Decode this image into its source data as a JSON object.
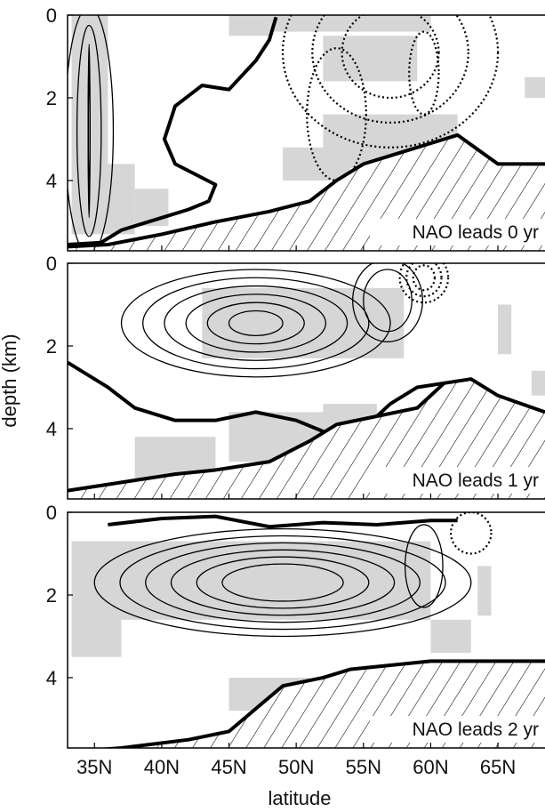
{
  "chart_data": {
    "type": "contour",
    "xlabel": "latitude",
    "ylabel": "depth (km)",
    "xlim": [
      33,
      68.5
    ],
    "ylim": [
      5.7,
      0
    ],
    "x_ticks": [
      {
        "value": 35,
        "label": "35N"
      },
      {
        "value": 40,
        "label": "40N"
      },
      {
        "value": 45,
        "label": "45N"
      },
      {
        "value": 50,
        "label": "50N"
      },
      {
        "value": 55,
        "label": "55N"
      },
      {
        "value": 60,
        "label": "60N"
      },
      {
        "value": 65,
        "label": "65N"
      }
    ],
    "y_ticks": [
      {
        "value": 0,
        "label": "0"
      },
      {
        "value": 2,
        "label": "2"
      },
      {
        "value": 4,
        "label": "4"
      }
    ],
    "shading": "grey = significant",
    "panels": [
      {
        "label": "NAO leads 0 yr",
        "bathymetry": [
          [
            33,
            5.6
          ],
          [
            36,
            5.55
          ],
          [
            40,
            5.3
          ],
          [
            44,
            5.0
          ],
          [
            48,
            4.75
          ],
          [
            51,
            4.5
          ],
          [
            53,
            4.0
          ],
          [
            55,
            3.6
          ],
          [
            57,
            3.4
          ],
          [
            60,
            3.1
          ],
          [
            62,
            2.9
          ],
          [
            65,
            3.6
          ],
          [
            68.5,
            3.6
          ]
        ],
        "positive_regions": [
          {
            "center": [
              34.6,
              2.8
            ],
            "radius": [
              1.8,
              3.0
            ],
            "levels": 5,
            "step": [
              0.9,
              0.45
            ]
          }
        ],
        "negative_regions": [
          {
            "center": [
              57,
              0.9
            ],
            "radius": [
              8,
              2.3
            ],
            "levels": 3,
            "step": [
              2.2,
              0.6
            ]
          },
          {
            "center": [
              53,
              2.4
            ],
            "radius": [
              2.2,
              1.6
            ],
            "levels": 1,
            "step": [
              0,
              0
            ]
          },
          {
            "center": [
              59.5,
              1.4
            ],
            "radius": [
              1.1,
              1.0
            ],
            "levels": 1,
            "step": [
              0,
              0
            ]
          }
        ],
        "zero_line": [
          [
            33,
            5.55
          ],
          [
            35.5,
            5.5
          ],
          [
            37,
            5.2
          ],
          [
            40,
            4.9
          ],
          [
            42,
            4.7
          ],
          [
            43.5,
            4.5
          ],
          [
            44,
            4.1
          ],
          [
            41,
            3.6
          ],
          [
            40.2,
            3.0
          ],
          [
            41,
            2.2
          ],
          [
            43,
            1.7
          ],
          [
            45,
            1.8
          ],
          [
            47,
            1.1
          ],
          [
            48,
            0.6
          ],
          [
            48.5,
            0.05
          ]
        ],
        "significance_boxes": [
          [
            [
              33.3,
              0.0
            ],
            [
              36.0,
              3.6
            ]
          ],
          [
            [
              33.3,
              3.6
            ],
            [
              38.0,
              5.3
            ]
          ],
          [
            [
              38.0,
              4.2
            ],
            [
              40.5,
              5.1
            ]
          ],
          [
            [
              45.0,
              0.0
            ],
            [
              48.0,
              0.5
            ]
          ],
          [
            [
              48.0,
              0.0
            ],
            [
              60.0,
              0.4
            ]
          ],
          [
            [
              52.0,
              0.5
            ],
            [
              59.0,
              1.6
            ]
          ],
          [
            [
              52.0,
              2.4
            ],
            [
              62.0,
              3.7
            ]
          ],
          [
            [
              49.0,
              3.2
            ],
            [
              54.0,
              4.0
            ]
          ],
          [
            [
              67.0,
              1.5
            ],
            [
              68.5,
              2.0
            ]
          ]
        ]
      },
      {
        "label": "NAO leads 1 yr",
        "bathymetry": [
          [
            33,
            5.5
          ],
          [
            37,
            5.3
          ],
          [
            41,
            5.1
          ],
          [
            44,
            5.0
          ],
          [
            48,
            4.8
          ],
          [
            51,
            4.3
          ],
          [
            53,
            3.9
          ],
          [
            56,
            3.7
          ],
          [
            59,
            3.5
          ],
          [
            61,
            2.9
          ],
          [
            63,
            2.8
          ],
          [
            65,
            3.2
          ],
          [
            68.5,
            3.6
          ]
        ],
        "positive_regions": [
          {
            "center": [
              47,
              1.45
            ],
            "radius": [
              10,
              1.3
            ],
            "levels": 6,
            "step": [
              1.6,
              0.2
            ]
          },
          {
            "center": [
              56.8,
              0.9
            ],
            "radius": [
              2.6,
              1.0
            ],
            "levels": 2,
            "step": [
              0.8,
              0.25
            ]
          }
        ],
        "negative_regions": [
          {
            "center": [
              59.5,
              0.35
            ],
            "radius": [
              1.8,
              0.6
            ],
            "levels": 3,
            "step": [
              0.5,
              0.15
            ]
          }
        ],
        "zero_line": [
          [
            33,
            2.4
          ],
          [
            36,
            3.0
          ],
          [
            38,
            3.5
          ],
          [
            41,
            3.8
          ],
          [
            44,
            3.8
          ],
          [
            47,
            3.6
          ],
          [
            50,
            3.8
          ],
          [
            53,
            4.2
          ],
          [
            55,
            4.0
          ],
          [
            57,
            3.4
          ],
          [
            59,
            3.0
          ],
          [
            61,
            2.9
          ]
        ],
        "significance_boxes": [
          [
            [
              43.0,
              0.6
            ],
            [
              58.0,
              2.3
            ]
          ],
          [
            [
              38.0,
              4.2
            ],
            [
              44.0,
              5.2
            ]
          ],
          [
            [
              45.0,
              3.6
            ],
            [
              52.0,
              4.8
            ]
          ],
          [
            [
              52.0,
              3.4
            ],
            [
              56.0,
              4.2
            ]
          ],
          [
            [
              65.0,
              1.0
            ],
            [
              66.0,
              2.2
            ]
          ],
          [
            [
              67.5,
              2.6
            ],
            [
              68.5,
              3.2
            ]
          ]
        ]
      },
      {
        "label": "NAO leads 2 yr",
        "bathymetry": [
          [
            33,
            5.8
          ],
          [
            37,
            5.7
          ],
          [
            42,
            5.5
          ],
          [
            45,
            5.3
          ],
          [
            49,
            4.2
          ],
          [
            52,
            4.0
          ],
          [
            54,
            3.8
          ],
          [
            57,
            3.7
          ],
          [
            60,
            3.6
          ],
          [
            63,
            3.6
          ],
          [
            66,
            3.6
          ],
          [
            68.5,
            3.6
          ]
        ],
        "positive_regions": [
          {
            "center": [
              49,
              1.7
            ],
            "radius": [
              14,
              1.3
            ],
            "levels": 6,
            "step": [
              1.9,
              0.17
            ]
          },
          {
            "center": [
              59.5,
              1.3
            ],
            "radius": [
              1.4,
              1.0
            ],
            "levels": 1,
            "step": [
              0,
              0
            ]
          }
        ],
        "negative_regions": [
          {
            "center": [
              63,
              0.5
            ],
            "radius": [
              1.5,
              0.5
            ],
            "levels": 1,
            "step": [
              0,
              0
            ]
          }
        ],
        "zero_line": [
          [
            36,
            0.3
          ],
          [
            40,
            0.15
          ],
          [
            44,
            0.1
          ],
          [
            48,
            0.35
          ],
          [
            52,
            0.25
          ],
          [
            56,
            0.3
          ],
          [
            60,
            0.2
          ],
          [
            62,
            0.2
          ]
        ],
        "significance_boxes": [
          [
            [
              33.3,
              0.7
            ],
            [
              60.0,
              2.6
            ]
          ],
          [
            [
              33.3,
              2.6
            ],
            [
              37.0,
              3.5
            ]
          ],
          [
            [
              45.0,
              4.0
            ],
            [
              51.0,
              4.8
            ]
          ],
          [
            [
              60.0,
              2.6
            ],
            [
              63.0,
              3.4
            ]
          ],
          [
            [
              63.5,
              1.3
            ],
            [
              64.5,
              2.5
            ]
          ]
        ]
      }
    ]
  }
}
